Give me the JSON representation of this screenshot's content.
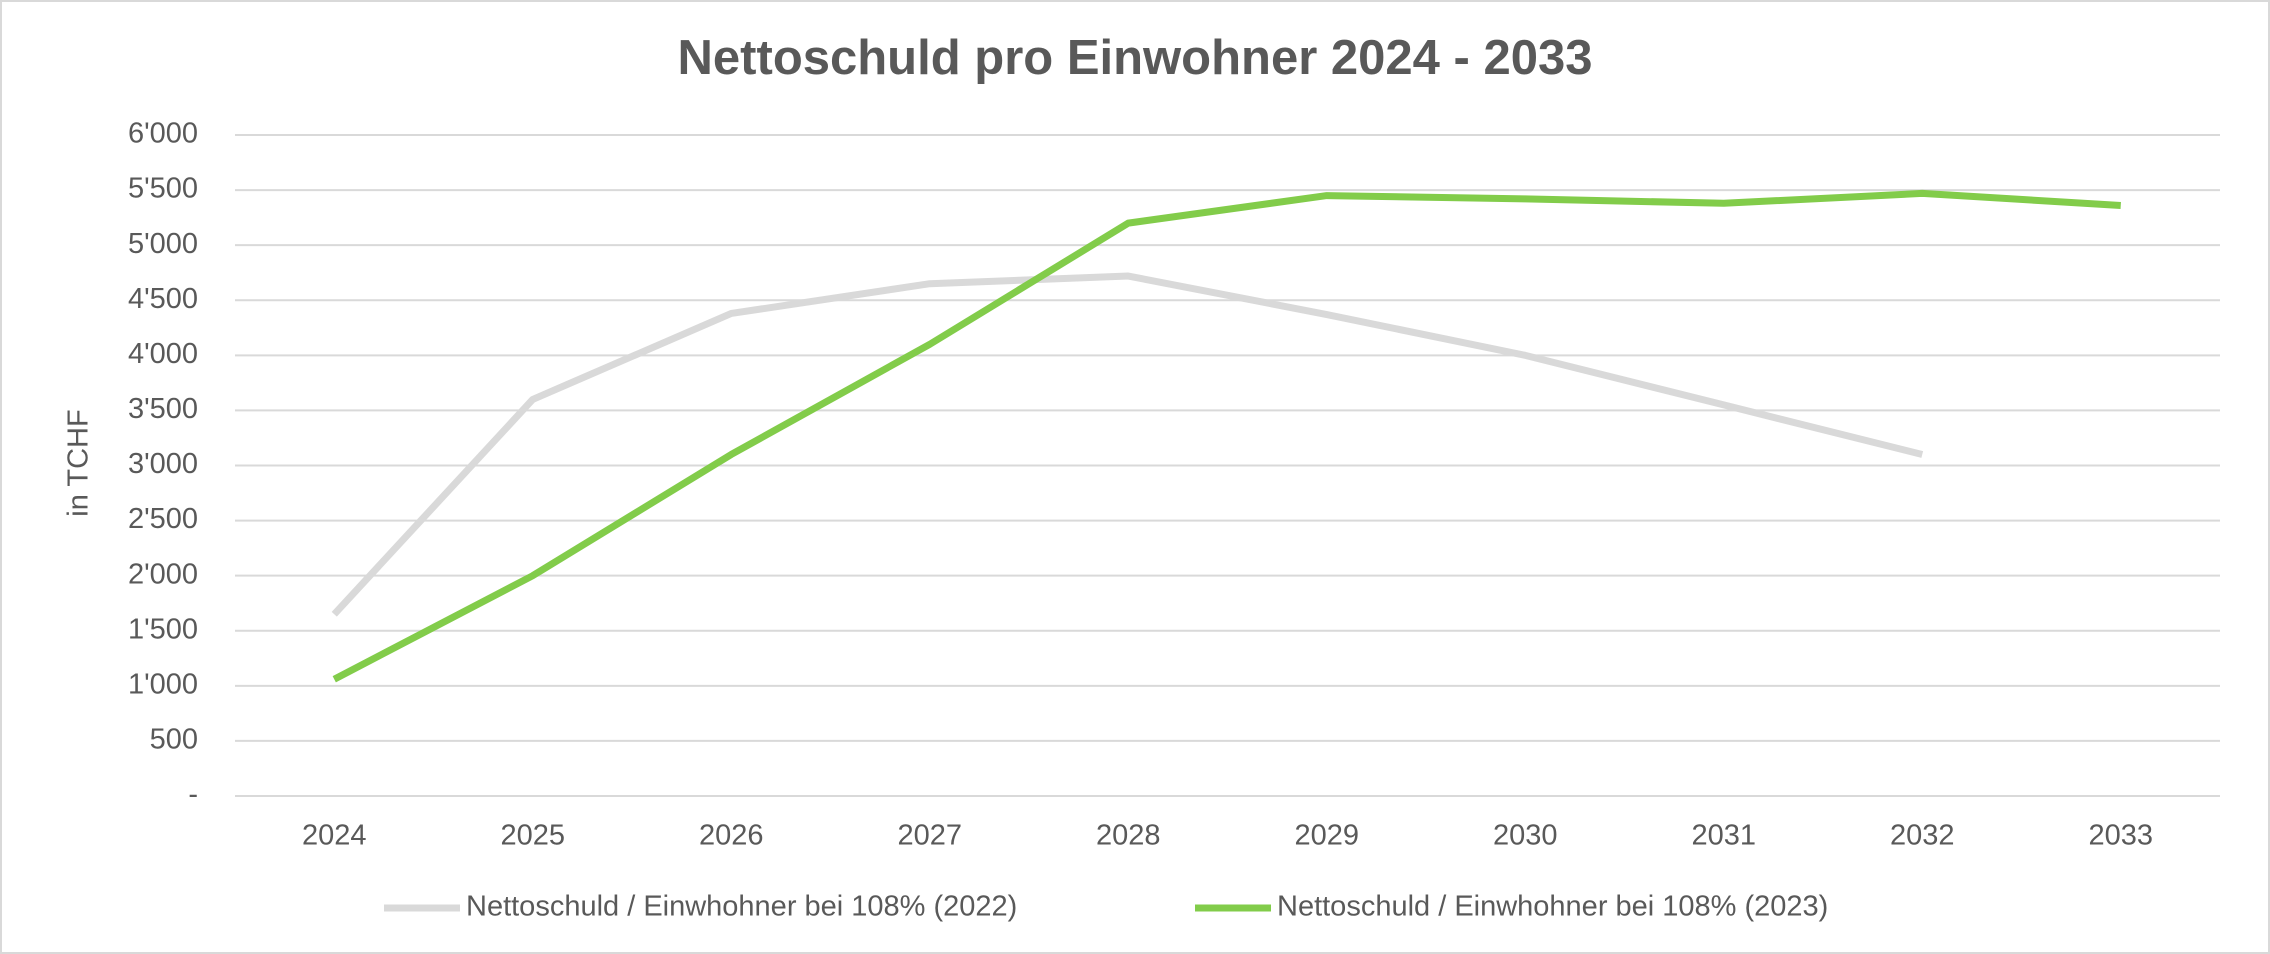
{
  "chart_data": {
    "type": "line",
    "title": "Nettoschuld pro Einwohner 2024 - 2033",
    "y_label": "in TCHF",
    "categories": [
      "2024",
      "2025",
      "2026",
      "2027",
      "2028",
      "2029",
      "2030",
      "2031",
      "2032",
      "2033"
    ],
    "series": [
      {
        "name": "Nettoschuld / Einwhohner bei 108% (2022)",
        "color": "#d9d9d9",
        "values": [
          1650,
          3600,
          4380,
          4650,
          4720,
          4370,
          4000,
          3550,
          3100,
          null
        ]
      },
      {
        "name": "Nettoschuld / Einwhohner bei 108% (2023)",
        "color": "#82cc4a",
        "values": [
          1060,
          2000,
          3100,
          4100,
          5200,
          5450,
          5420,
          5380,
          5470,
          5360
        ]
      }
    ],
    "ylim": [
      0,
      6000
    ],
    "yticks": [
      {
        "value": 0,
        "label": "-"
      },
      500,
      {
        "value": 1000,
        "label": "1'000"
      },
      {
        "value": 1500,
        "label": "1'500"
      },
      {
        "value": 2000,
        "label": "2'000"
      },
      {
        "value": 2500,
        "label": "2'500"
      },
      {
        "value": 3000,
        "label": "3'000"
      },
      {
        "value": 3500,
        "label": "3'500"
      },
      {
        "value": 4000,
        "label": "4'000"
      },
      {
        "value": 4500,
        "label": "4'500"
      },
      {
        "value": 5000,
        "label": "5'000"
      },
      {
        "value": 5500,
        "label": "5'500"
      },
      {
        "value": 6000,
        "label": "6'000"
      }
    ],
    "grid": true,
    "legend": "bottom"
  }
}
